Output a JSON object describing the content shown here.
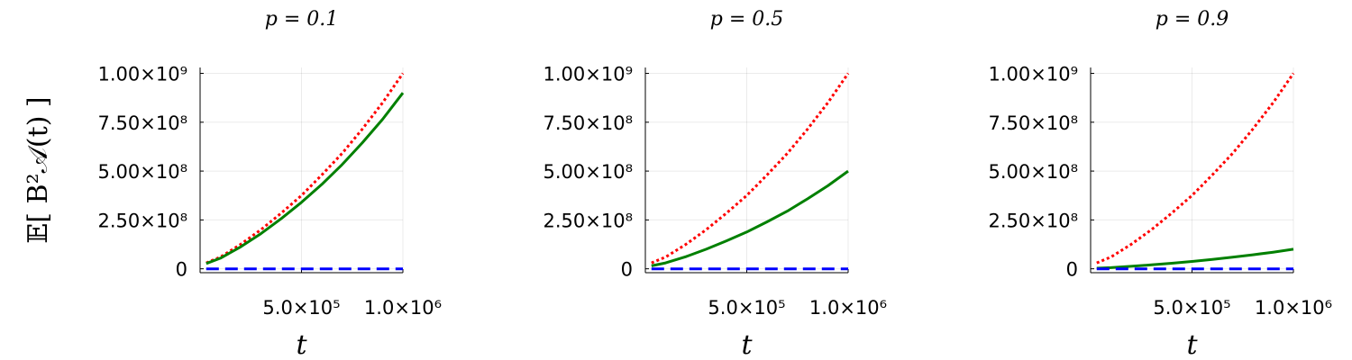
{
  "chart_data": [
    {
      "type": "line",
      "title": "p = 0.1",
      "xlabel": "t",
      "ylabel": "𝔼[ B²𝒜(t) ]",
      "xlim": [
        0,
        1000000
      ],
      "ylim": [
        -20000000,
        1030000000
      ],
      "x_ticks": [
        {
          "value": 500000,
          "label": "5.0×10⁵"
        },
        {
          "value": 1000000,
          "label": "1.0×10⁶"
        }
      ],
      "y_ticks": [
        {
          "value": 0,
          "label": "0"
        },
        {
          "value": 250000000,
          "label": "2.50×10⁸"
        },
        {
          "value": 500000000,
          "label": "5.00×10⁸"
        },
        {
          "value": 750000000,
          "label": "7.50×10⁸"
        },
        {
          "value": 1000000000,
          "label": "1.00×10⁹"
        }
      ],
      "grid": true,
      "series": [
        {
          "color": "#ff0000",
          "style": "dotted",
          "x": [
            30000,
            100000,
            200000,
            300000,
            400000,
            500000,
            600000,
            700000,
            800000,
            900000,
            1000000
          ],
          "y": [
            30000000,
            60000000,
            125000000,
            200000000,
            285000000,
            375000000,
            480000000,
            590000000,
            715000000,
            850000000,
            1000000000
          ]
        },
        {
          "color": "#008000",
          "style": "solid",
          "x": [
            30000,
            100000,
            200000,
            300000,
            400000,
            500000,
            600000,
            700000,
            800000,
            900000,
            1000000
          ],
          "y": [
            27000000,
            54000000,
            112000000,
            180000000,
            257000000,
            340000000,
            432000000,
            533000000,
            645000000,
            765000000,
            900000000
          ]
        },
        {
          "color": "#0000ff",
          "style": "dashed",
          "x": [
            30000,
            1000000
          ],
          "y": [
            0,
            0
          ]
        }
      ]
    },
    {
      "type": "line",
      "title": "p = 0.5",
      "xlabel": "t",
      "xlim": [
        0,
        1000000
      ],
      "ylim": [
        -20000000,
        1030000000
      ],
      "x_ticks": [
        {
          "value": 500000,
          "label": "5.0×10⁵"
        },
        {
          "value": 1000000,
          "label": "1.0×10⁶"
        }
      ],
      "y_ticks": [
        {
          "value": 0,
          "label": "0"
        },
        {
          "value": 250000000,
          "label": "2.50×10⁸"
        },
        {
          "value": 500000000,
          "label": "5.00×10⁸"
        },
        {
          "value": 750000000,
          "label": "7.50×10⁸"
        },
        {
          "value": 1000000000,
          "label": "1.00×10⁹"
        }
      ],
      "grid": true,
      "series": [
        {
          "color": "#ff0000",
          "style": "dotted",
          "x": [
            30000,
            100000,
            200000,
            300000,
            400000,
            500000,
            600000,
            700000,
            800000,
            900000,
            1000000
          ],
          "y": [
            30000000,
            60000000,
            125000000,
            200000000,
            285000000,
            375000000,
            480000000,
            590000000,
            715000000,
            850000000,
            1000000000
          ]
        },
        {
          "color": "#008000",
          "style": "solid",
          "x": [
            30000,
            100000,
            200000,
            300000,
            400000,
            500000,
            600000,
            700000,
            800000,
            900000,
            1000000
          ],
          "y": [
            15000000,
            30000000,
            62000000,
            100000000,
            143000000,
            188000000,
            240000000,
            295000000,
            358000000,
            425000000,
            500000000
          ]
        },
        {
          "color": "#0000ff",
          "style": "dashed",
          "x": [
            30000,
            1000000
          ],
          "y": [
            0,
            0
          ]
        }
      ]
    },
    {
      "type": "line",
      "title": "p = 0.9",
      "xlabel": "t",
      "xlim": [
        0,
        1000000
      ],
      "ylim": [
        -20000000,
        1030000000
      ],
      "x_ticks": [
        {
          "value": 500000,
          "label": "5.0×10⁵"
        },
        {
          "value": 1000000,
          "label": "1.0×10⁶"
        }
      ],
      "y_ticks": [
        {
          "value": 0,
          "label": "0"
        },
        {
          "value": 250000000,
          "label": "2.50×10⁸"
        },
        {
          "value": 500000000,
          "label": "5.00×10⁸"
        },
        {
          "value": 750000000,
          "label": "7.50×10⁸"
        },
        {
          "value": 1000000000,
          "label": "1.00×10⁹"
        }
      ],
      "grid": true,
      "series": [
        {
          "color": "#ff0000",
          "style": "dotted",
          "x": [
            30000,
            100000,
            200000,
            300000,
            400000,
            500000,
            600000,
            700000,
            800000,
            900000,
            1000000
          ],
          "y": [
            30000000,
            60000000,
            125000000,
            200000000,
            285000000,
            375000000,
            480000000,
            590000000,
            715000000,
            850000000,
            1000000000
          ]
        },
        {
          "color": "#008000",
          "style": "solid",
          "x": [
            30000,
            100000,
            200000,
            300000,
            400000,
            500000,
            600000,
            700000,
            800000,
            900000,
            1000000
          ],
          "y": [
            3000000,
            6000000,
            12500000,
            20000000,
            28500000,
            37500000,
            48000000,
            59000000,
            71500000,
            85000000,
            100000000
          ]
        },
        {
          "color": "#0000ff",
          "style": "dashed",
          "x": [
            30000,
            1000000
          ],
          "y": [
            0,
            0
          ]
        }
      ]
    }
  ]
}
